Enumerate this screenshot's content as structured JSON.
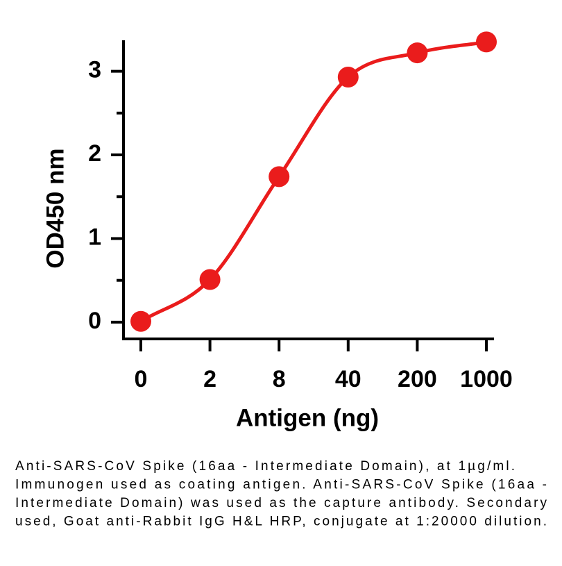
{
  "chart_data": {
    "type": "line",
    "y_label": "OD450 nm",
    "x_label": "Antigen (ng)",
    "categories": [
      "0",
      "2",
      "8",
      "40",
      "200",
      "1000"
    ],
    "series": [
      {
        "name": "OD450",
        "color": "#ea1c1c",
        "values": [
          0.01,
          0.51,
          1.74,
          2.93,
          3.22,
          3.35
        ]
      }
    ],
    "ylim": [
      -0.2,
      3.37
    ],
    "yticks": [
      0,
      1,
      2,
      3
    ],
    "minor_yticks": [
      0.5,
      1.5,
      2.5
    ],
    "caption": [
      "Anti-SARS-CoV Spike (16aa - Intermediate Domain), at 1µg/ml.",
      "Immunogen used as coating antigen. Anti-SARS-CoV Spike (16aa -",
      "Intermediate Domain) was used as the capture antibody. Secondary",
      "used, Goat anti-Rabbit IgG H&L HRP, conjugate at 1:20000 dilution."
    ]
  }
}
